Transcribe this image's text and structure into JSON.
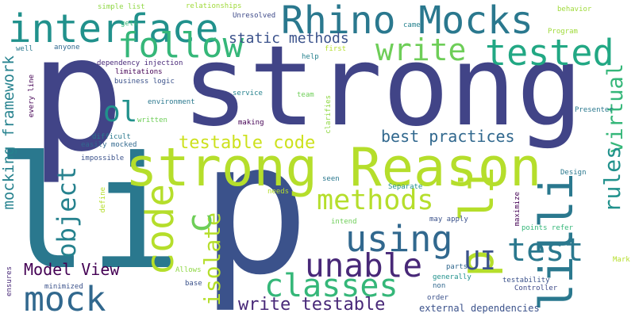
{
  "words": [
    {
      "text": "strong",
      "color": "#414487"
    },
    {
      "text": "li",
      "color": "#2a788e"
    },
    {
      "text": "p",
      "color": "#414487"
    },
    {
      "text": "p",
      "color": "#3b528b"
    },
    {
      "text": "strong Reason",
      "color": "#b5de2b"
    },
    {
      "text": "Rhino Mocks",
      "color": "#2a788e"
    },
    {
      "text": "interface",
      "color": "#21918c"
    },
    {
      "text": "follow",
      "color": "#35b779"
    },
    {
      "text": "write",
      "color": "#6ece58"
    },
    {
      "text": "tested",
      "color": "#22a884"
    },
    {
      "text": "code",
      "color": "#b5de2b"
    },
    {
      "text": "ol",
      "color": "#21918c"
    },
    {
      "text": "using",
      "color": "#31688e"
    },
    {
      "text": "unable",
      "color": "#482878"
    },
    {
      "text": "classes",
      "color": "#35b779"
    },
    {
      "text": "mock",
      "color": "#31688e"
    },
    {
      "text": "lilli",
      "color": "#2a788e"
    },
    {
      "text": "p li",
      "color": "#b5de2b"
    },
    {
      "text": "test",
      "color": "#2a788e"
    },
    {
      "text": "UI",
      "color": "#3b528b"
    },
    {
      "text": "methods",
      "color": "#b5de2b"
    },
    {
      "text": "testable code",
      "color": "#cde11d"
    },
    {
      "text": "best practices",
      "color": "#31688e"
    },
    {
      "text": "static methods",
      "color": "#3b528b"
    },
    {
      "text": "write testable",
      "color": "#482878"
    },
    {
      "text": "Model View",
      "color": "#440154"
    },
    {
      "text": "isolate",
      "color": "#b5de2b"
    },
    {
      "text": "c",
      "color": "#6ece58"
    },
    {
      "text": "object",
      "color": "#26828e"
    },
    {
      "text": "virtual",
      "color": "#35b779"
    },
    {
      "text": "rules",
      "color": "#21918c"
    },
    {
      "text": "mocking framework",
      "color": "#26828e"
    },
    {
      "text": "external dependencies",
      "color": "#3b528b"
    },
    {
      "text": "simple list",
      "color": "#8fd744"
    },
    {
      "text": "relationships",
      "color": "#a0da39"
    },
    {
      "text": "Unresolved",
      "color": "#3e4a89"
    },
    {
      "text": "came",
      "color": "#26828e"
    },
    {
      "text": "behavior",
      "color": "#9fda3a"
    },
    {
      "text": "gets",
      "color": "#35b779"
    },
    {
      "text": "Program",
      "color": "#9fda3a"
    },
    {
      "text": "well",
      "color": "#2a788e"
    },
    {
      "text": "anyone",
      "color": "#31688e"
    },
    {
      "text": "first",
      "color": "#b5de2b"
    },
    {
      "text": "help",
      "color": "#26828e"
    },
    {
      "text": "dependency injection",
      "color": "#482878"
    },
    {
      "text": "limitations",
      "color": "#440154"
    },
    {
      "text": "business logic",
      "color": "#3b528b"
    },
    {
      "text": "service",
      "color": "#26828e"
    },
    {
      "text": "team",
      "color": "#6ece58"
    },
    {
      "text": "environment",
      "color": "#2a788e"
    },
    {
      "text": "every line",
      "color": "#440154"
    },
    {
      "text": "written",
      "color": "#6ece58"
    },
    {
      "text": "making",
      "color": "#440154"
    },
    {
      "text": "clarifies",
      "color": "#8fd744"
    },
    {
      "text": "Presenter",
      "color": "#2a788e"
    },
    {
      "text": "difficult",
      "color": "#2a788e"
    },
    {
      "text": "easily mocked",
      "color": "#31688e"
    },
    {
      "text": "impossible",
      "color": "#3b528b"
    },
    {
      "text": "Design",
      "color": "#2a788e"
    },
    {
      "text": "seen",
      "color": "#2a788e"
    },
    {
      "text": "needs",
      "color": "#b5de2b"
    },
    {
      "text": "Separate",
      "color": "#21918c"
    },
    {
      "text": "define",
      "color": "#b5de2b"
    },
    {
      "text": "intend",
      "color": "#6ece58"
    },
    {
      "text": "maximize",
      "color": "#440154"
    },
    {
      "text": "may apply",
      "color": "#3b528b"
    },
    {
      "text": "points refer",
      "color": "#35b779"
    },
    {
      "text": "Allows",
      "color": "#8fd744"
    },
    {
      "text": "parts",
      "color": "#31688e"
    },
    {
      "text": "generally",
      "color": "#21918c"
    },
    {
      "text": "non",
      "color": "#31688e"
    },
    {
      "text": "Mark",
      "color": "#b5de2b"
    },
    {
      "text": "ensures",
      "color": "#482878"
    },
    {
      "text": "minimized",
      "color": "#3b528b"
    },
    {
      "text": "base",
      "color": "#3b528b"
    },
    {
      "text": "testability",
      "color": "#3b528b"
    },
    {
      "text": "Controller",
      "color": "#3e4a89"
    },
    {
      "text": "order",
      "color": "#3b528b"
    }
  ]
}
